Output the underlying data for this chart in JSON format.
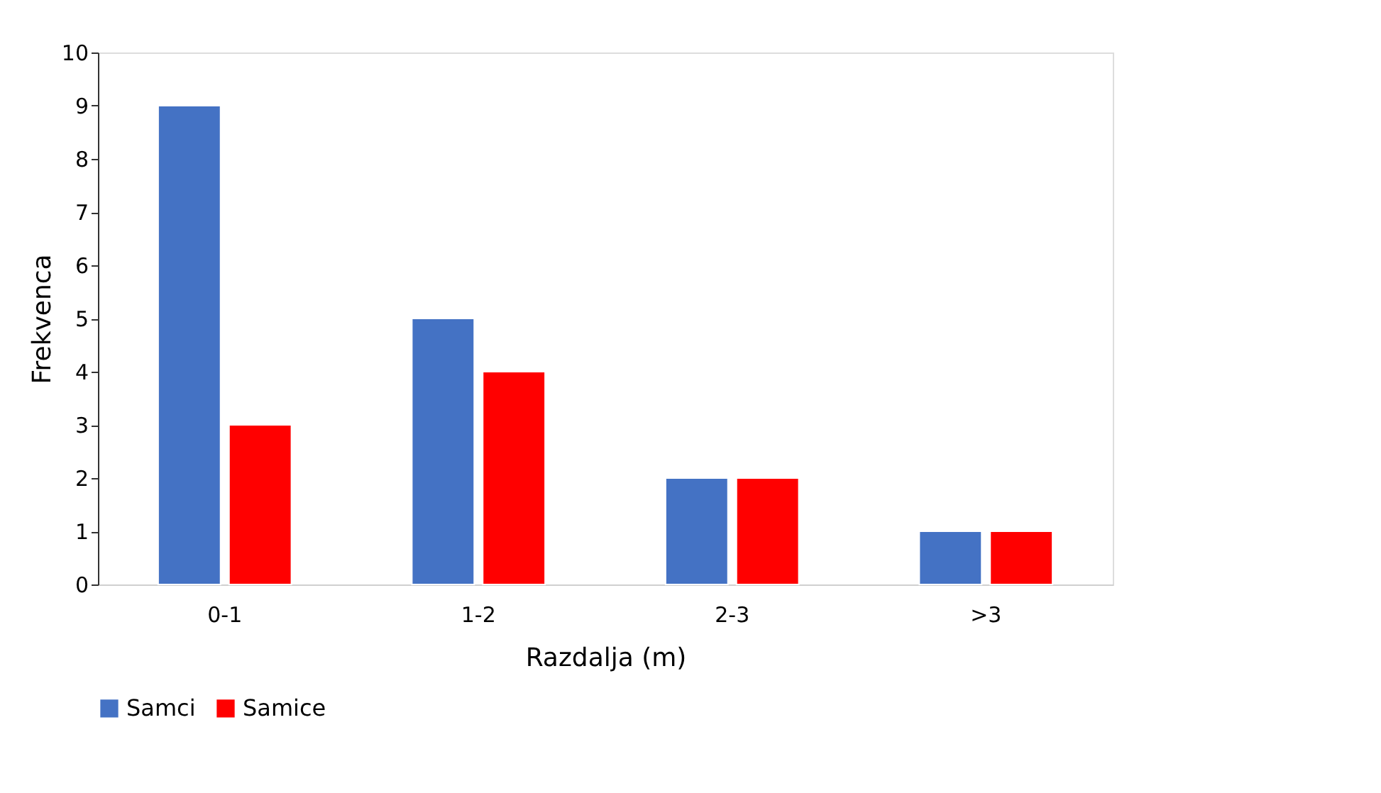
{
  "chart_data": {
    "type": "bar",
    "xlabel": "Razdalja (m)",
    "ylabel": "Frekvenca",
    "categories": [
      "0-1",
      "1-2",
      "2-3",
      ">3"
    ],
    "series": [
      {
        "name": "Samci",
        "color": "#4472c4",
        "values": [
          9,
          5,
          2,
          1
        ]
      },
      {
        "name": "Samice",
        "color": "#ff0000",
        "values": [
          3,
          4,
          2,
          1
        ]
      }
    ],
    "ylim": [
      0,
      10
    ],
    "yticks": [
      0,
      1,
      2,
      3,
      4,
      5,
      6,
      7,
      8,
      9,
      10
    ],
    "grid": false,
    "legend": "bottom"
  }
}
